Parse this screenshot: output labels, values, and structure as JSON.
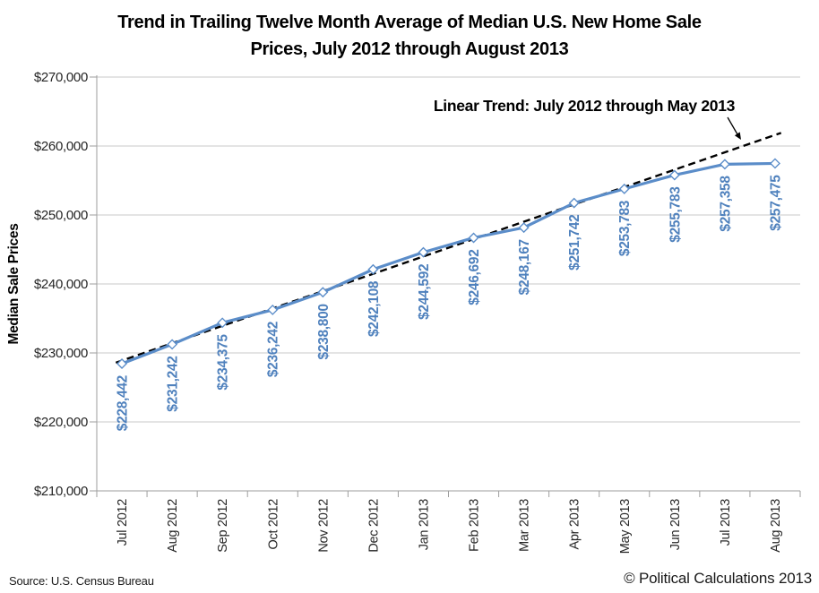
{
  "chart_data": {
    "type": "line",
    "title": "Trend in Trailing Twelve Month Average of Median U.S. New Home Sale Prices, July 2012 through August 2013",
    "xlabel": "",
    "ylabel": "Median Sale Prices",
    "ylim": [
      210000,
      270000
    ],
    "ytick_step": 10000,
    "ytick_labels": [
      "$270,000",
      "$260,000",
      "$250,000",
      "$240,000",
      "$230,000",
      "$220,000",
      "$210,000"
    ],
    "grid": "horizontal",
    "legend": "none",
    "categories": [
      "Jul 2012",
      "Aug 2012",
      "Sep 2012",
      "Oct 2012",
      "Nov 2012",
      "Dec 2012",
      "Jan 2013",
      "Feb 2013",
      "Mar 2013",
      "Apr 2013",
      "May 2013",
      "Jun 2013",
      "Jul 2013",
      "Aug 2013"
    ],
    "series": [
      {
        "name": "Trailing twelve month average of median new home sale price",
        "values": [
          228442,
          231242,
          234375,
          236242,
          238800,
          242108,
          244592,
          246692,
          248167,
          251742,
          253783,
          255783,
          257358,
          257475
        ],
        "value_labels": [
          "$228,442",
          "$231,242",
          "$234,375",
          "$236,242",
          "$238,800",
          "$242,108",
          "$244,592",
          "$246,692",
          "$248,167",
          "$251,742",
          "$253,783",
          "$255,783",
          "$257,358",
          "$257,475"
        ],
        "marker": "diamond"
      }
    ],
    "trend": {
      "label": "Linear Trend: July 2012 through May 2013",
      "style": "dashed",
      "fit_start_index": 0,
      "fit_end_index": 10
    },
    "colors": {
      "line": "#5B8DC9",
      "marker_fill": "#FFFFFF",
      "data_label": "#4F81BD",
      "trend": "#000000",
      "gridline": "#C9C9C9",
      "axis": "#9E9E9E",
      "tick_label": "#262626",
      "title": "#000000"
    }
  },
  "footer": {
    "source": "Source: U.S. Census Bureau",
    "copyright": "© Political Calculations 2013"
  }
}
